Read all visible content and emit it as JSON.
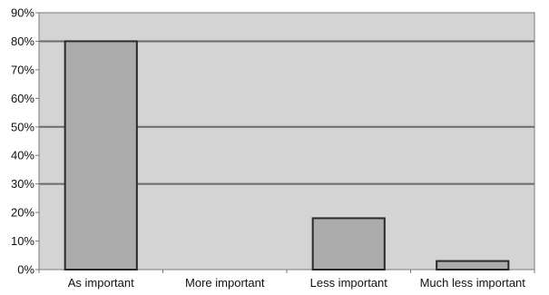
{
  "chart_data": {
    "type": "bar",
    "categories": [
      "As important",
      "More important",
      "Less important",
      "Much less important"
    ],
    "values": [
      80,
      0,
      18,
      3
    ],
    "title": "",
    "xlabel": "",
    "ylabel": "",
    "ylim": [
      0,
      90
    ],
    "yticks": [
      "0%",
      "10%",
      "20%",
      "30%",
      "40%",
      "50%",
      "60%",
      "70%",
      "80%",
      "90%"
    ],
    "grid": true,
    "legend": "none",
    "colors": {
      "plot_background": "#d4d4d4",
      "bar_fill": "#acacac",
      "bar_stroke": "#2a2a2a",
      "gridline": "#6a6a6a",
      "axis": "#7a7a7a"
    }
  }
}
